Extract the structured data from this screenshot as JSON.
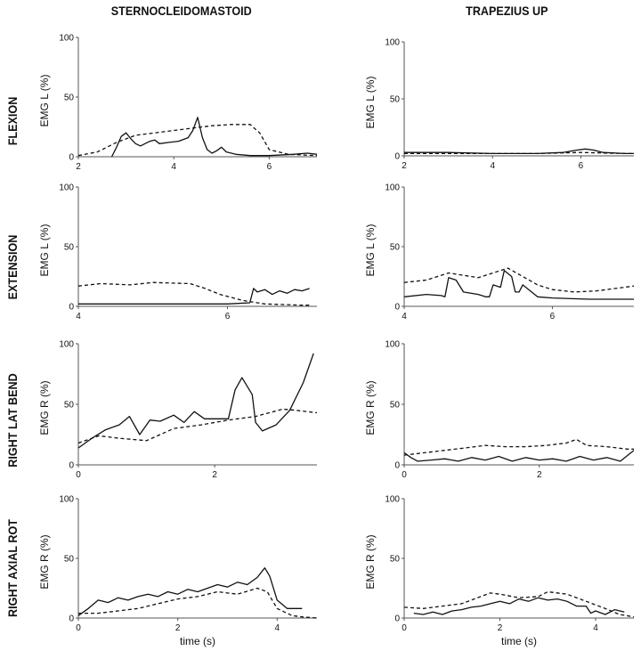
{
  "col_titles": [
    "STERNOCLEIDOMASTOID",
    "TRAPEZIUS UP"
  ],
  "row_labels": [
    "FLEXION",
    "EXTENSION",
    "RIGHT LAT BEND",
    "RIGHT AXIAL ROT"
  ],
  "xlabel": "time (s)",
  "chart_data": [
    {
      "type": "line",
      "title": "STERNOCLEIDOMASTOID - FLEXION",
      "ylabel": "EMG L (%)",
      "xlabel": "",
      "xlim": [
        2,
        7
      ],
      "ylim": [
        0,
        100
      ],
      "xticks": [
        2,
        4,
        6
      ],
      "yticks": [
        0,
        50,
        100
      ],
      "series": [
        {
          "name": "solid",
          "style": "solid",
          "x": [
            2.7,
            2.8,
            2.9,
            3.0,
            3.1,
            3.2,
            3.3,
            3.5,
            3.6,
            3.7,
            3.9,
            4.1,
            4.3,
            4.4,
            4.5,
            4.6,
            4.7,
            4.8,
            4.9,
            5.0,
            5.1,
            5.3,
            5.6,
            6.0,
            6.5,
            6.8,
            7.0
          ],
          "y": [
            0,
            8,
            17,
            20,
            15,
            11,
            9,
            13,
            14,
            11,
            12,
            13,
            16,
            22,
            33,
            16,
            6,
            3,
            5,
            8,
            4,
            2,
            1,
            1,
            2,
            3,
            2
          ]
        },
        {
          "name": "dashed",
          "style": "dashed",
          "x": [
            2.0,
            2.4,
            2.8,
            3.2,
            3.6,
            4.0,
            4.4,
            4.8,
            5.2,
            5.6,
            5.8,
            6.0,
            6.4,
            7.0
          ],
          "y": [
            1,
            4,
            12,
            18,
            20,
            22,
            24,
            26,
            27,
            27,
            20,
            6,
            2,
            1
          ]
        }
      ]
    },
    {
      "type": "line",
      "title": "TRAPEZIUS UP - FLEXION",
      "ylabel": "EMG L (%)",
      "xlabel": "",
      "xlim": [
        2,
        7.2
      ],
      "ylim": [
        0,
        100
      ],
      "xticks": [
        2,
        4,
        6
      ],
      "yticks": [
        0,
        50,
        100
      ],
      "series": [
        {
          "name": "solid",
          "style": "solid",
          "x": [
            2.0,
            3.0,
            4.0,
            5.0,
            5.6,
            5.9,
            6.1,
            6.3,
            6.5,
            7.0,
            7.2
          ],
          "y": [
            3,
            3,
            2,
            2,
            3,
            5,
            6,
            5,
            3,
            2,
            2
          ]
        },
        {
          "name": "dashed",
          "style": "dashed",
          "x": [
            2.0,
            3.0,
            4.0,
            5.0,
            6.0,
            7.0,
            7.2
          ],
          "y": [
            2,
            2,
            2,
            2,
            3,
            2,
            2
          ]
        }
      ]
    },
    {
      "type": "line",
      "title": "STERNOCLEIDOMASTOID - EXTENSION",
      "ylabel": "EMG L (%)",
      "xlabel": "",
      "xlim": [
        4,
        7.2
      ],
      "ylim": [
        0,
        100
      ],
      "xticks": [
        4,
        6
      ],
      "yticks": [
        0,
        50,
        100
      ],
      "series": [
        {
          "name": "solid",
          "style": "solid",
          "x": [
            4.0,
            4.5,
            5.0,
            5.5,
            6.0,
            6.3,
            6.35,
            6.4,
            6.5,
            6.6,
            6.7,
            6.8,
            6.9,
            7.0,
            7.1
          ],
          "y": [
            2,
            2,
            2,
            2,
            2,
            3,
            15,
            12,
            14,
            10,
            13,
            11,
            14,
            13,
            15
          ]
        },
        {
          "name": "dashed",
          "style": "dashed",
          "x": [
            4.0,
            4.3,
            4.7,
            5.0,
            5.5,
            5.7,
            5.9,
            6.2,
            6.5,
            7.0,
            7.1
          ],
          "y": [
            17,
            19,
            18,
            20,
            19,
            15,
            10,
            5,
            2,
            1,
            1
          ]
        }
      ]
    },
    {
      "type": "line",
      "title": "TRAPEZIUS UP - EXTENSION",
      "ylabel": "EMG L (%)",
      "xlabel": "",
      "xlim": [
        4,
        7.1
      ],
      "ylim": [
        0,
        100
      ],
      "xticks": [
        4,
        6
      ],
      "yticks": [
        0,
        50,
        100
      ],
      "series": [
        {
          "name": "solid",
          "style": "solid",
          "x": [
            4.0,
            4.3,
            4.5,
            4.55,
            4.6,
            4.7,
            4.8,
            5.0,
            5.1,
            5.15,
            5.2,
            5.3,
            5.35,
            5.45,
            5.5,
            5.55,
            5.6,
            5.8,
            6.0,
            6.5,
            7.1
          ],
          "y": [
            8,
            10,
            9,
            8,
            24,
            22,
            12,
            10,
            8,
            8,
            18,
            16,
            30,
            25,
            12,
            12,
            18,
            8,
            7,
            6,
            6
          ]
        },
        {
          "name": "dashed",
          "style": "dashed",
          "x": [
            4.0,
            4.3,
            4.6,
            5.0,
            5.4,
            5.6,
            5.8,
            6.0,
            6.3,
            6.6,
            7.1
          ],
          "y": [
            20,
            22,
            28,
            24,
            32,
            25,
            18,
            14,
            12,
            13,
            17
          ]
        }
      ]
    },
    {
      "type": "line",
      "title": "STERNOCLEIDOMASTOID - RIGHT LAT BEND",
      "ylabel": "EMG R (%)",
      "xlabel": "",
      "xlim": [
        0,
        3.5
      ],
      "ylim": [
        0,
        100
      ],
      "xticks": [
        0,
        2
      ],
      "yticks": [
        0,
        50,
        100
      ],
      "series": [
        {
          "name": "solid",
          "style": "solid",
          "x": [
            0.0,
            0.2,
            0.4,
            0.6,
            0.75,
            0.9,
            1.05,
            1.2,
            1.4,
            1.55,
            1.7,
            1.85,
            2.0,
            2.2,
            2.3,
            2.4,
            2.55,
            2.6,
            2.7,
            2.9,
            3.1,
            3.3,
            3.45
          ],
          "y": [
            14,
            22,
            29,
            33,
            40,
            25,
            37,
            36,
            41,
            35,
            44,
            38,
            38,
            38,
            62,
            72,
            58,
            35,
            28,
            33,
            45,
            68,
            92
          ]
        },
        {
          "name": "dashed",
          "style": "dashed",
          "x": [
            0.0,
            0.3,
            0.6,
            1.0,
            1.4,
            1.8,
            2.2,
            2.6,
            3.0,
            3.2,
            3.5
          ],
          "y": [
            18,
            24,
            22,
            20,
            30,
            33,
            37,
            40,
            46,
            45,
            43
          ]
        }
      ]
    },
    {
      "type": "line",
      "title": "TRAPEZIUS UP - RIGHT LAT BEND",
      "ylabel": "EMG R (%)",
      "xlabel": "",
      "xlim": [
        0,
        3.4
      ],
      "ylim": [
        0,
        100
      ],
      "xticks": [
        0,
        2
      ],
      "yticks": [
        0,
        50,
        100
      ],
      "series": [
        {
          "name": "solid",
          "style": "solid",
          "x": [
            0.0,
            0.1,
            0.2,
            0.4,
            0.6,
            0.8,
            1.0,
            1.2,
            1.4,
            1.6,
            1.8,
            2.0,
            2.2,
            2.4,
            2.6,
            2.8,
            3.0,
            3.2,
            3.4
          ],
          "y": [
            10,
            6,
            3,
            4,
            5,
            3,
            6,
            4,
            7,
            3,
            6,
            4,
            5,
            3,
            7,
            4,
            6,
            3,
            12
          ]
        },
        {
          "name": "dashed",
          "style": "dashed",
          "x": [
            0.0,
            0.3,
            0.6,
            0.9,
            1.2,
            1.5,
            1.8,
            2.1,
            2.4,
            2.55,
            2.7,
            3.0,
            3.3,
            3.4
          ],
          "y": [
            8,
            10,
            12,
            14,
            16,
            15,
            15,
            16,
            18,
            21,
            16,
            15,
            13,
            13
          ]
        }
      ]
    },
    {
      "type": "line",
      "title": "STERNOCLEIDOMASTOID - RIGHT AXIAL ROT",
      "ylabel": "EMG R (%)",
      "xlabel": "time (s)",
      "xlim": [
        0,
        4.8
      ],
      "ylim": [
        0,
        100
      ],
      "xticks": [
        0,
        2,
        4
      ],
      "yticks": [
        0,
        50,
        100
      ],
      "series": [
        {
          "name": "solid",
          "style": "solid",
          "x": [
            0.0,
            0.2,
            0.4,
            0.6,
            0.8,
            1.0,
            1.2,
            1.4,
            1.6,
            1.8,
            2.0,
            2.2,
            2.4,
            2.6,
            2.8,
            3.0,
            3.2,
            3.4,
            3.6,
            3.75,
            3.85,
            4.0,
            4.2,
            4.5
          ],
          "y": [
            2,
            8,
            15,
            13,
            17,
            15,
            18,
            20,
            18,
            22,
            20,
            24,
            22,
            25,
            28,
            26,
            30,
            28,
            34,
            42,
            35,
            15,
            8,
            8
          ]
        },
        {
          "name": "dashed",
          "style": "dashed",
          "x": [
            0.0,
            0.4,
            0.8,
            1.2,
            1.6,
            2.0,
            2.4,
            2.8,
            3.2,
            3.6,
            3.8,
            4.0,
            4.3,
            4.5,
            4.8
          ],
          "y": [
            4,
            4,
            6,
            8,
            12,
            16,
            18,
            22,
            20,
            25,
            22,
            8,
            2,
            1,
            0
          ]
        }
      ]
    },
    {
      "type": "line",
      "title": "TRAPEZIUS UP - RIGHT AXIAL ROT",
      "ylabel": "EMG R (%)",
      "xlabel": "time (s)",
      "xlim": [
        0,
        4.8
      ],
      "ylim": [
        0,
        100
      ],
      "xticks": [
        0,
        2,
        4
      ],
      "yticks": [
        0,
        50,
        100
      ],
      "series": [
        {
          "name": "solid",
          "style": "solid",
          "x": [
            0.2,
            0.4,
            0.6,
            0.8,
            1.0,
            1.2,
            1.4,
            1.6,
            1.8,
            2.0,
            2.2,
            2.4,
            2.6,
            2.8,
            3.0,
            3.2,
            3.4,
            3.6,
            3.8,
            3.9,
            4.0,
            4.2,
            4.4,
            4.6
          ],
          "y": [
            4,
            3,
            5,
            3,
            6,
            7,
            9,
            10,
            12,
            14,
            12,
            16,
            14,
            17,
            15,
            16,
            14,
            10,
            10,
            4,
            6,
            3,
            7,
            5
          ]
        },
        {
          "name": "dashed",
          "style": "dashed",
          "x": [
            0.0,
            0.4,
            0.8,
            1.2,
            1.6,
            1.8,
            2.0,
            2.4,
            2.8,
            3.0,
            3.4,
            3.8,
            4.2,
            4.5,
            4.8
          ],
          "y": [
            9,
            8,
            10,
            12,
            18,
            21,
            20,
            17,
            18,
            22,
            20,
            14,
            8,
            3,
            1
          ]
        }
      ]
    }
  ]
}
